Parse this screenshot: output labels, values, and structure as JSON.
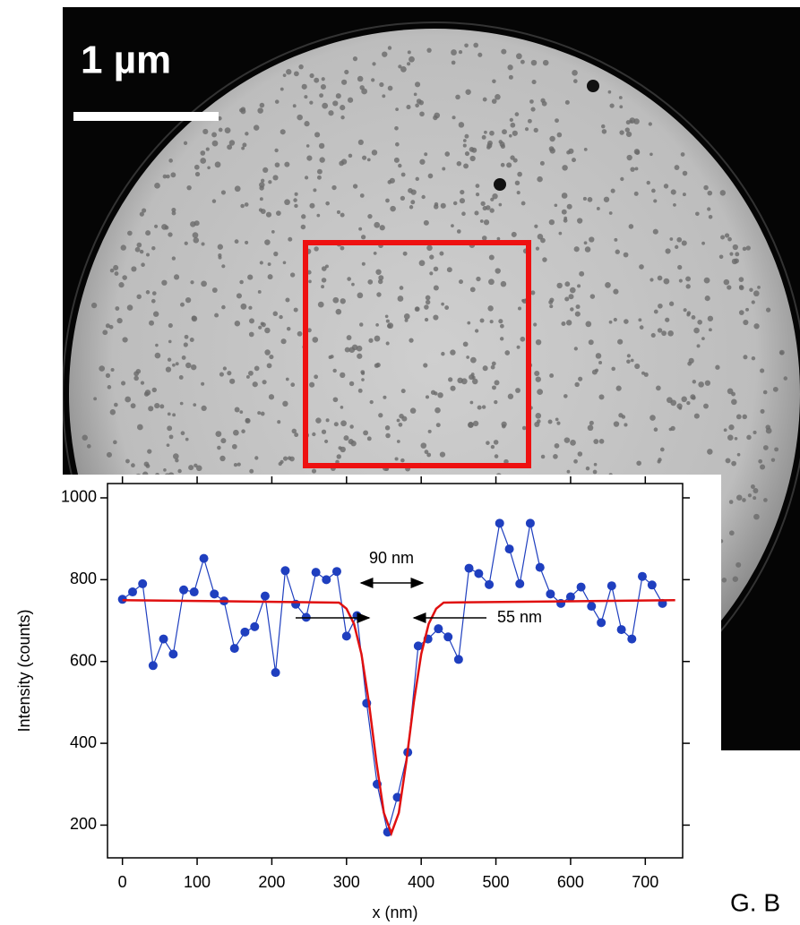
{
  "image": {
    "scale_label": "1 µm"
  },
  "credit": "G. B",
  "chart_data": {
    "type": "scatter",
    "xlabel": "x (nm)",
    "ylabel": "Intensity (counts)",
    "xlim": [
      -20,
      750
    ],
    "ylim": [
      120,
      1035
    ],
    "xticks": [
      0,
      100,
      200,
      300,
      400,
      500,
      600,
      700
    ],
    "yticks": [
      200,
      400,
      600,
      800,
      1000
    ],
    "series": [
      {
        "color": "#1f3fbf",
        "mode": "lines+markers",
        "x": [
          0,
          13.6,
          27,
          41,
          55,
          68,
          82,
          96,
          109,
          123,
          136,
          150,
          164,
          177,
          191,
          205,
          218,
          232,
          246,
          259,
          273,
          287,
          300,
          314,
          327,
          341,
          355,
          368,
          382,
          396,
          409,
          423,
          436,
          450,
          464,
          477,
          491,
          505,
          518,
          532,
          546,
          559,
          573,
          587,
          600,
          614,
          628,
          641,
          655,
          668,
          682,
          696,
          709,
          723
        ],
        "values": [
          752,
          770,
          790,
          590,
          655,
          618,
          775,
          770,
          852,
          765,
          748,
          632,
          672,
          685,
          760,
          573,
          822,
          740,
          708,
          818,
          800,
          820,
          662,
          712,
          498,
          300,
          183,
          268,
          378,
          638,
          655,
          680,
          660,
          605,
          828,
          815,
          788,
          938,
          875,
          790,
          938,
          830,
          765,
          742,
          758,
          782,
          735,
          695,
          785,
          678,
          655,
          808,
          787,
          742
        ]
      },
      {
        "color": "#e01010",
        "mode": "lines",
        "x": [
          0,
          290,
          300,
          310,
          320,
          330,
          340,
          350,
          360,
          370,
          380,
          390,
          400,
          410,
          420,
          430,
          740
        ],
        "values": [
          750,
          744,
          729,
          692,
          618,
          499,
          354,
          230,
          180,
          230,
          354,
          499,
          618,
          692,
          729,
          744,
          750
        ]
      }
    ],
    "annotations": [
      {
        "text": "90 nm"
      },
      {
        "text": "55 nm"
      }
    ]
  }
}
